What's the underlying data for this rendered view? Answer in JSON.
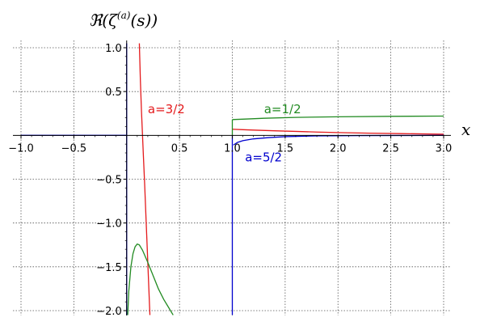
{
  "chart_data": {
    "type": "line",
    "title": "",
    "xlabel": "x",
    "ylabel": "ℜ(ζ(a)(s))",
    "xlim": [
      -1.0,
      3.0
    ],
    "ylim": [
      -2.0,
      1.0
    ],
    "grid": true,
    "x_ticks": [
      "−1.0",
      "−0.5",
      "0.5",
      "1.0",
      "1.5",
      "2.0",
      "2.5",
      "3.0"
    ],
    "y_ticks": [
      "1.0",
      "0.5",
      "−0.5",
      "−1.0",
      "−1.5",
      "−2.0"
    ],
    "x_tick_values": [
      -1.0,
      -0.5,
      0.5,
      1.0,
      1.5,
      2.0,
      2.5,
      3.0
    ],
    "y_tick_values": [
      1.0,
      0.5,
      -0.5,
      -1.0,
      -1.5,
      -2.0
    ],
    "series": [
      {
        "name": "a=3/2",
        "color": "#e41a1c",
        "points": [
          [
            0.12,
            1.05
          ],
          [
            0.13,
            0.62
          ],
          [
            0.14,
            0.28
          ],
          [
            0.15,
            0.0
          ],
          [
            0.16,
            -0.28
          ],
          [
            0.17,
            -0.55
          ],
          [
            0.18,
            -0.85
          ],
          [
            0.19,
            -1.15
          ],
          [
            0.2,
            -1.45
          ],
          [
            0.21,
            -1.75
          ],
          [
            0.22,
            -2.05
          ]
        ],
        "points_b": [
          [
            1.0,
            0.07
          ],
          [
            1.1,
            0.065
          ],
          [
            1.2,
            0.06
          ],
          [
            1.4,
            0.052
          ],
          [
            1.6,
            0.045
          ],
          [
            1.8,
            0.038
          ],
          [
            2.0,
            0.032
          ],
          [
            2.3,
            0.025
          ],
          [
            2.6,
            0.02
          ],
          [
            3.0,
            0.013
          ]
        ],
        "vertical": [
          [
            0.12,
            1.05
          ],
          [
            0.12,
            1.05
          ]
        ]
      },
      {
        "name": "a=1/2",
        "color": "#228b22",
        "points": [
          [
            0.01,
            -2.05
          ],
          [
            0.02,
            -1.78
          ],
          [
            0.04,
            -1.5
          ],
          [
            0.06,
            -1.35
          ],
          [
            0.08,
            -1.27
          ],
          [
            0.1,
            -1.24
          ],
          [
            0.12,
            -1.25
          ],
          [
            0.15,
            -1.31
          ],
          [
            0.2,
            -1.45
          ],
          [
            0.25,
            -1.6
          ],
          [
            0.3,
            -1.75
          ],
          [
            0.35,
            -1.87
          ],
          [
            0.4,
            -1.97
          ],
          [
            0.44,
            -2.05
          ]
        ],
        "points_b": [
          [
            1.0,
            0.18
          ],
          [
            1.1,
            0.185
          ],
          [
            1.3,
            0.195
          ],
          [
            1.6,
            0.205
          ],
          [
            2.0,
            0.212
          ],
          [
            2.5,
            0.217
          ],
          [
            3.0,
            0.22
          ]
        ],
        "vertical": [
          [
            1.0,
            0.0
          ],
          [
            1.0,
            0.18
          ]
        ]
      },
      {
        "name": "a=5/2",
        "color": "#0000cd",
        "points": [
          [
            -1.0,
            0.0
          ],
          [
            0.0,
            0.0
          ]
        ],
        "points_b": [
          [
            1.01,
            -0.11
          ],
          [
            1.05,
            -0.08
          ],
          [
            1.1,
            -0.06
          ],
          [
            1.2,
            -0.04
          ],
          [
            1.35,
            -0.025
          ],
          [
            1.5,
            -0.015
          ],
          [
            1.8,
            -0.006
          ],
          [
            2.2,
            -0.002
          ],
          [
            3.0,
            0.0
          ]
        ],
        "vertical": [
          [
            0.0,
            1.05
          ],
          [
            0.0,
            -2.05
          ]
        ],
        "vertical2": [
          [
            1.0,
            0.0
          ],
          [
            1.0,
            -2.05
          ]
        ]
      }
    ],
    "annotations": [
      {
        "text": "a=3/2",
        "color": "#e41a1c",
        "x": 0.2,
        "y": 0.3
      },
      {
        "text": "a=1/2",
        "color": "#228b22",
        "x": 1.3,
        "y": 0.3
      },
      {
        "text": "a=5/2",
        "color": "#0000cd",
        "x": 1.12,
        "y": -0.25
      }
    ]
  }
}
